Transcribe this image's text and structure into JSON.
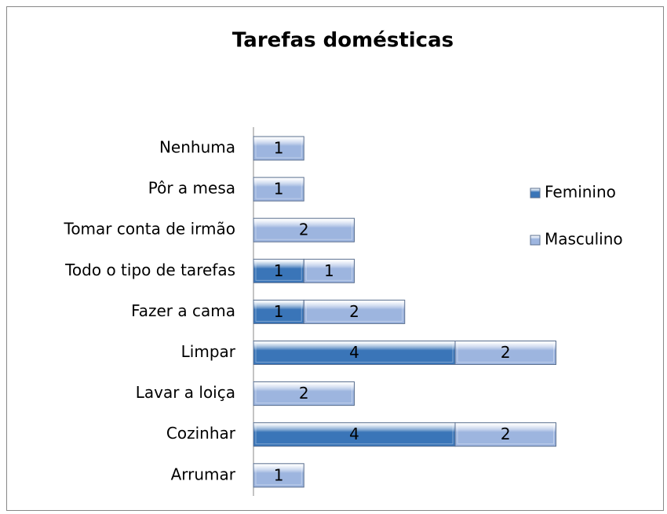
{
  "chart_data": {
    "type": "bar",
    "orientation": "horizontal",
    "stacked": true,
    "title": "Tarefas domésticas",
    "categories": [
      "Nenhuma",
      "Pôr a mesa",
      "Tomar conta de irmão",
      "Todo o tipo de tarefas",
      "Fazer a cama",
      "Limpar",
      "Lavar a loiça",
      "Cozinhar",
      "Arrumar"
    ],
    "series": [
      {
        "name": "Feminino",
        "color": "#3a75b8",
        "values": [
          null,
          null,
          null,
          1,
          1,
          4,
          null,
          4,
          null
        ]
      },
      {
        "name": "Masculino",
        "color": "#9db5df",
        "values": [
          1,
          1,
          2,
          1,
          2,
          2,
          2,
          2,
          1
        ]
      }
    ],
    "legend": "right"
  }
}
